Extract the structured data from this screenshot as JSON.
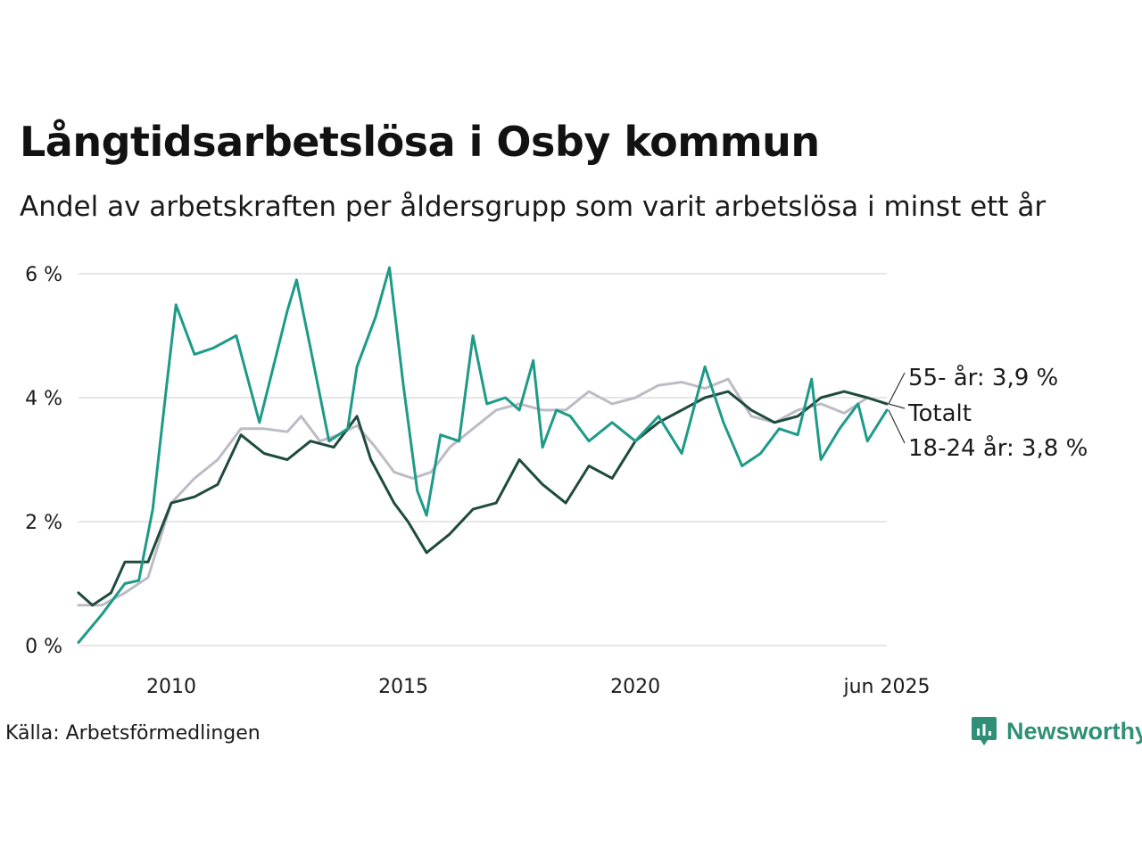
{
  "title": "Långtidsarbetslösa i Osby kommun",
  "subtitle": "Andel av arbetskraften per åldersgrupp som varit arbetslösa i minst ett år",
  "source": "Källa: Arbetsförmedlingen",
  "brand": {
    "name": "Newsworthy",
    "icon": "newsworthy-logo-icon",
    "color": "#2f8f77"
  },
  "chart_data": {
    "type": "line",
    "x_range": [
      "2008-01",
      "2025-06"
    ],
    "ylim": [
      0,
      6
    ],
    "y_ticks": [
      0,
      2,
      4,
      6
    ],
    "y_tick_labels": [
      "0 %",
      "2 %",
      "4 %",
      "6 %"
    ],
    "x_ticks": [
      2010,
      2015,
      2020,
      2025.42
    ],
    "x_tick_labels": [
      "2010",
      "2015",
      "2020",
      "jun 2025"
    ],
    "grid": true,
    "series": [
      {
        "name": "55- år",
        "end_label": "55- år: 3,9 %",
        "color": "#bdbcc6",
        "points": [
          [
            2008.0,
            0.65
          ],
          [
            2008.5,
            0.65
          ],
          [
            2009.0,
            0.85
          ],
          [
            2009.5,
            1.1
          ],
          [
            2010.0,
            2.3
          ],
          [
            2010.5,
            2.7
          ],
          [
            2011.0,
            3.0
          ],
          [
            2011.5,
            3.5
          ],
          [
            2012.0,
            3.5
          ],
          [
            2012.5,
            3.45
          ],
          [
            2012.8,
            3.7
          ],
          [
            2013.2,
            3.3
          ],
          [
            2013.6,
            3.4
          ],
          [
            2014.0,
            3.55
          ],
          [
            2014.4,
            3.2
          ],
          [
            2014.8,
            2.8
          ],
          [
            2015.2,
            2.7
          ],
          [
            2015.6,
            2.8
          ],
          [
            2016.0,
            3.2
          ],
          [
            2016.5,
            3.5
          ],
          [
            2017.0,
            3.8
          ],
          [
            2017.5,
            3.9
          ],
          [
            2018.0,
            3.8
          ],
          [
            2018.5,
            3.8
          ],
          [
            2019.0,
            4.1
          ],
          [
            2019.5,
            3.9
          ],
          [
            2020.0,
            4.0
          ],
          [
            2020.5,
            4.2
          ],
          [
            2021.0,
            4.25
          ],
          [
            2021.5,
            4.15
          ],
          [
            2022.0,
            4.3
          ],
          [
            2022.5,
            3.7
          ],
          [
            2023.0,
            3.6
          ],
          [
            2023.5,
            3.8
          ],
          [
            2024.0,
            3.9
          ],
          [
            2024.5,
            3.75
          ],
          [
            2025.0,
            4.0
          ],
          [
            2025.42,
            3.9
          ]
        ]
      },
      {
        "name": "Totalt",
        "end_label": "Totalt",
        "color": "#1f4b3e",
        "points": [
          [
            2008.0,
            0.85
          ],
          [
            2008.3,
            0.65
          ],
          [
            2008.7,
            0.85
          ],
          [
            2009.0,
            1.35
          ],
          [
            2009.5,
            1.35
          ],
          [
            2010.0,
            2.3
          ],
          [
            2010.5,
            2.4
          ],
          [
            2011.0,
            2.6
          ],
          [
            2011.5,
            3.4
          ],
          [
            2012.0,
            3.1
          ],
          [
            2012.5,
            3.0
          ],
          [
            2013.0,
            3.3
          ],
          [
            2013.5,
            3.2
          ],
          [
            2014.0,
            3.7
          ],
          [
            2014.3,
            3.0
          ],
          [
            2014.8,
            2.3
          ],
          [
            2015.1,
            2.0
          ],
          [
            2015.5,
            1.5
          ],
          [
            2016.0,
            1.8
          ],
          [
            2016.5,
            2.2
          ],
          [
            2017.0,
            2.3
          ],
          [
            2017.5,
            3.0
          ],
          [
            2018.0,
            2.6
          ],
          [
            2018.5,
            2.3
          ],
          [
            2019.0,
            2.9
          ],
          [
            2019.5,
            2.7
          ],
          [
            2020.0,
            3.3
          ],
          [
            2020.5,
            3.6
          ],
          [
            2021.0,
            3.8
          ],
          [
            2021.5,
            4.0
          ],
          [
            2022.0,
            4.1
          ],
          [
            2022.5,
            3.8
          ],
          [
            2023.0,
            3.6
          ],
          [
            2023.5,
            3.7
          ],
          [
            2024.0,
            4.0
          ],
          [
            2024.5,
            4.1
          ],
          [
            2025.0,
            4.0
          ],
          [
            2025.42,
            3.9
          ]
        ]
      },
      {
        "name": "18-24 år",
        "end_label": "18-24 år: 3,8 %",
        "color": "#1e9a88",
        "points": [
          [
            2008.0,
            0.05
          ],
          [
            2008.5,
            0.5
          ],
          [
            2009.0,
            1.0
          ],
          [
            2009.3,
            1.05
          ],
          [
            2009.6,
            2.2
          ],
          [
            2009.9,
            4.2
          ],
          [
            2010.1,
            5.5
          ],
          [
            2010.5,
            4.7
          ],
          [
            2010.9,
            4.8
          ],
          [
            2011.4,
            5.0
          ],
          [
            2011.9,
            3.6
          ],
          [
            2012.2,
            4.5
          ],
          [
            2012.5,
            5.4
          ],
          [
            2012.7,
            5.9
          ],
          [
            2013.0,
            4.8
          ],
          [
            2013.4,
            3.3
          ],
          [
            2013.8,
            3.5
          ],
          [
            2014.0,
            4.5
          ],
          [
            2014.4,
            5.3
          ],
          [
            2014.7,
            6.1
          ],
          [
            2015.0,
            4.2
          ],
          [
            2015.3,
            2.5
          ],
          [
            2015.5,
            2.1
          ],
          [
            2015.8,
            3.4
          ],
          [
            2016.2,
            3.3
          ],
          [
            2016.5,
            5.0
          ],
          [
            2016.8,
            3.9
          ],
          [
            2017.2,
            4.0
          ],
          [
            2017.5,
            3.8
          ],
          [
            2017.8,
            4.6
          ],
          [
            2018.0,
            3.2
          ],
          [
            2018.3,
            3.8
          ],
          [
            2018.6,
            3.7
          ],
          [
            2019.0,
            3.3
          ],
          [
            2019.5,
            3.6
          ],
          [
            2020.0,
            3.3
          ],
          [
            2020.5,
            3.7
          ],
          [
            2021.0,
            3.1
          ],
          [
            2021.5,
            4.5
          ],
          [
            2021.9,
            3.6
          ],
          [
            2022.3,
            2.9
          ],
          [
            2022.7,
            3.1
          ],
          [
            2023.1,
            3.5
          ],
          [
            2023.5,
            3.4
          ],
          [
            2023.8,
            4.3
          ],
          [
            2024.0,
            3.0
          ],
          [
            2024.4,
            3.5
          ],
          [
            2024.8,
            3.9
          ],
          [
            2025.0,
            3.3
          ],
          [
            2025.42,
            3.8
          ]
        ]
      }
    ]
  }
}
